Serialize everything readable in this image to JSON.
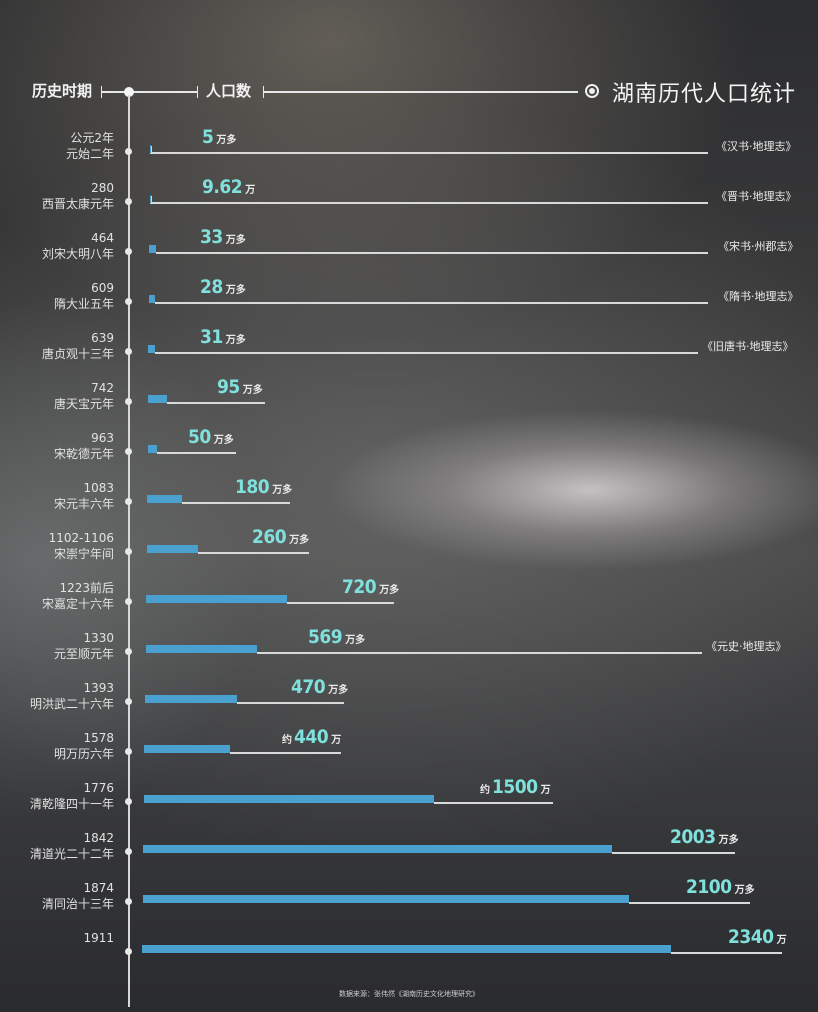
{
  "header": {
    "period_label": "历史时期",
    "population_label": "人口数",
    "title": "湖南历代人口统计"
  },
  "footer": {
    "source": "数据来源：张伟然《湖南历史文化地理研究》"
  },
  "colors": {
    "bar": "#4aa0cf",
    "value_text": "#7fe0dc",
    "text": "#e8e8e8"
  },
  "chart_data": {
    "type": "bar",
    "orientation": "horizontal",
    "title": "湖南历代人口统计",
    "xlabel": "人口数",
    "ylabel": "历史时期",
    "unit": "万",
    "categories": [
      "公元2年 元始二年",
      "280 西晋太康元年",
      "464 刘宋大明八年",
      "609 隋大业五年",
      "639 唐贞观十三年",
      "742 唐天宝元年",
      "963 宋乾德元年",
      "1083 宋元丰六年",
      "1102-1106 宋崇宁年间",
      "1223前后 宋嘉定十六年",
      "1330 元至顺元年",
      "1393 明洪武二十六年",
      "1578 明万历六年",
      "1776 清乾隆四十一年",
      "1842 清道光二十二年",
      "1874 清同治十三年",
      "1911"
    ],
    "values": [
      5,
      9.62,
      33,
      28,
      31,
      95,
      50,
      180,
      260,
      720,
      569,
      470,
      440,
      1500,
      2003,
      2100,
      2340
    ],
    "legend": [],
    "grid": false
  },
  "rows": [
    {
      "year": "公元2年",
      "era": "元始二年",
      "prefix": "",
      "value": "5",
      "unit": "万多",
      "source": "《汉书·地理志》"
    },
    {
      "year": "280",
      "era": "西晋太康元年",
      "prefix": "",
      "value": "9.62",
      "unit": "万",
      "source": "《晋书·地理志》"
    },
    {
      "year": "464",
      "era": "刘宋大明八年",
      "prefix": "",
      "value": "33",
      "unit": "万多",
      "source": "《宋书·州郡志》"
    },
    {
      "year": "609",
      "era": "隋大业五年",
      "prefix": "",
      "value": "28",
      "unit": "万多",
      "source": "《隋书·地理志》"
    },
    {
      "year": "639",
      "era": "唐贞观十三年",
      "prefix": "",
      "value": "31",
      "unit": "万多",
      "source": "《旧唐书·地理志》"
    },
    {
      "year": "742",
      "era": "唐天宝元年",
      "prefix": "",
      "value": "95",
      "unit": "万多",
      "source": ""
    },
    {
      "year": "963",
      "era": "宋乾德元年",
      "prefix": "",
      "value": "50",
      "unit": "万多",
      "source": ""
    },
    {
      "year": "1083",
      "era": "宋元丰六年",
      "prefix": "",
      "value": "180",
      "unit": "万多",
      "source": ""
    },
    {
      "year": "1102-1106",
      "era": "宋崇宁年间",
      "prefix": "",
      "value": "260",
      "unit": "万多",
      "source": ""
    },
    {
      "year": "1223前后",
      "era": "宋嘉定十六年",
      "prefix": "",
      "value": "720",
      "unit": "万多",
      "source": ""
    },
    {
      "year": "1330",
      "era": "元至顺元年",
      "prefix": "",
      "value": "569",
      "unit": "万多",
      "source": "《元史·地理志》"
    },
    {
      "year": "1393",
      "era": "明洪武二十六年",
      "prefix": "",
      "value": "470",
      "unit": "万多",
      "source": ""
    },
    {
      "year": "1578",
      "era": "明万历六年",
      "prefix": "约",
      "value": "440",
      "unit": "万",
      "source": ""
    },
    {
      "year": "1776",
      "era": "清乾隆四十一年",
      "prefix": "约",
      "value": "1500",
      "unit": "万",
      "source": ""
    },
    {
      "year": "1842",
      "era": "清道光二十二年",
      "prefix": "",
      "value": "2003",
      "unit": "万多",
      "source": ""
    },
    {
      "year": "1874",
      "era": "清同治十三年",
      "prefix": "",
      "value": "2100",
      "unit": "万多",
      "source": ""
    },
    {
      "year": "1911",
      "era": "",
      "prefix": "",
      "value": "2340",
      "unit": "万",
      "source": ""
    }
  ]
}
